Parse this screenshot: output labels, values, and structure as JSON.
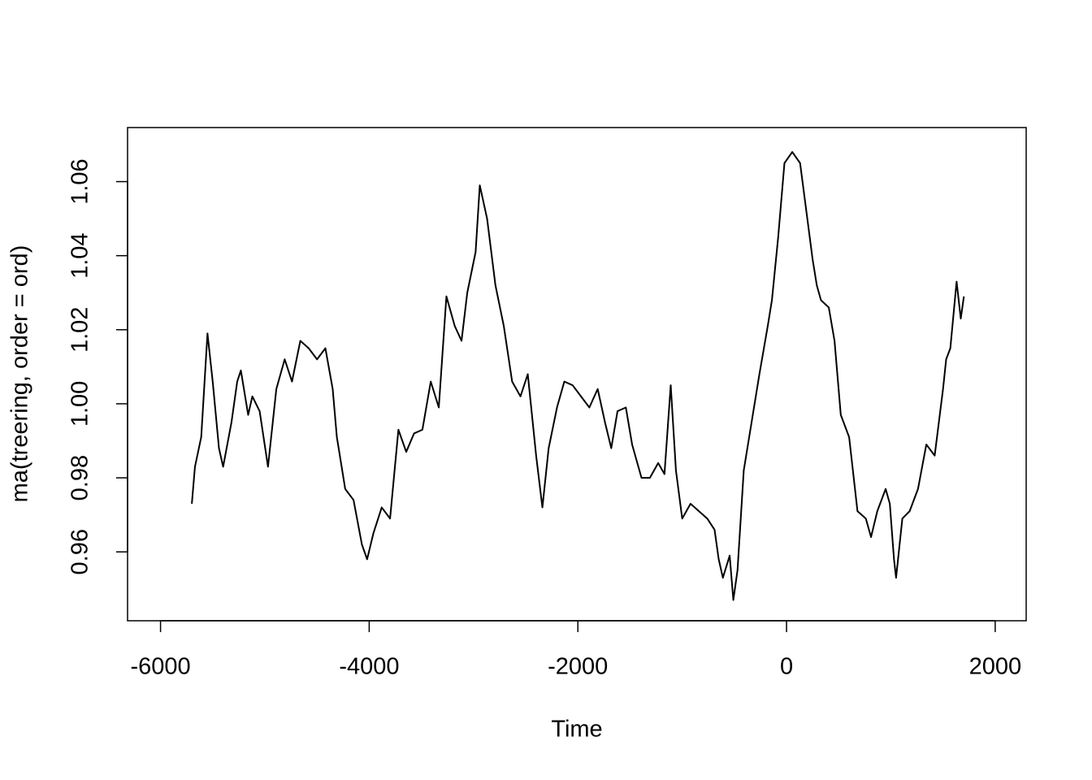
{
  "chart_data": {
    "type": "line",
    "xlabel": "Time",
    "ylabel": "ma(treering, order = ord)",
    "x": [
      -5700,
      -5670,
      -5610,
      -5550,
      -5500,
      -5440,
      -5400,
      -5320,
      -5265,
      -5230,
      -5160,
      -5120,
      -5050,
      -4970,
      -4890,
      -4810,
      -4740,
      -4660,
      -4580,
      -4500,
      -4420,
      -4350,
      -4310,
      -4230,
      -4150,
      -4070,
      -4020,
      -3960,
      -3880,
      -3800,
      -3720,
      -3645,
      -3570,
      -3490,
      -3410,
      -3333,
      -3260,
      -3180,
      -3115,
      -3060,
      -2980,
      -2940,
      -2870,
      -2790,
      -2710,
      -2630,
      -2550,
      -2480,
      -2400,
      -2340,
      -2280,
      -2200,
      -2130,
      -2050,
      -1970,
      -1890,
      -1810,
      -1740,
      -1680,
      -1620,
      -1540,
      -1480,
      -1390,
      -1310,
      -1230,
      -1170,
      -1110,
      -1060,
      -1000,
      -920,
      -840,
      -760,
      -690,
      -650,
      -610,
      -545,
      -510,
      -470,
      -410,
      -335,
      -260,
      -180,
      -140,
      -80,
      -20,
      55,
      130,
      190,
      250,
      290,
      330,
      405,
      460,
      520,
      600,
      680,
      760,
      810,
      870,
      950,
      990,
      1030,
      1050,
      1110,
      1180,
      1260,
      1340,
      1420,
      1500,
      1530,
      1570,
      1630,
      1670,
      1700
    ],
    "series": [
      {
        "color": "#000000",
        "values": [
          0.973,
          0.983,
          0.991,
          1.019,
          1.006,
          0.988,
          0.983,
          0.995,
          1.006,
          1.009,
          0.997,
          1.002,
          0.998,
          0.983,
          1.004,
          1.012,
          1.006,
          1.017,
          1.015,
          1.012,
          1.015,
          1.004,
          0.991,
          0.977,
          0.974,
          0.962,
          0.958,
          0.965,
          0.972,
          0.969,
          0.993,
          0.987,
          0.992,
          0.993,
          1.006,
          0.999,
          1.029,
          1.021,
          1.017,
          1.03,
          1.041,
          1.059,
          1.05,
          1.032,
          1.021,
          1.006,
          1.002,
          1.008,
          0.986,
          0.972,
          0.988,
          0.999,
          1.006,
          1.005,
          1.002,
          0.999,
          1.004,
          0.995,
          0.988,
          0.998,
          0.999,
          0.989,
          0.98,
          0.98,
          0.984,
          0.981,
          1.005,
          0.982,
          0.969,
          0.973,
          0.971,
          0.969,
          0.966,
          0.958,
          0.953,
          0.959,
          0.947,
          0.955,
          0.982,
          0.995,
          1.008,
          1.021,
          1.028,
          1.045,
          1.065,
          1.068,
          1.065,
          1.052,
          1.039,
          1.032,
          1.028,
          1.026,
          1.017,
          0.997,
          0.991,
          0.971,
          0.969,
          0.964,
          0.971,
          0.977,
          0.973,
          0.958,
          0.953,
          0.969,
          0.971,
          0.977,
          0.989,
          0.986,
          1.004,
          1.012,
          1.015,
          1.033,
          1.023,
          1.029
        ]
      }
    ],
    "xlim": [
      -6316,
      2297
    ],
    "ylim": [
      0.9414,
      1.0746
    ],
    "xticks": [
      -6000,
      -4000,
      -2000,
      0,
      2000
    ],
    "yticks": [
      0.96,
      0.98,
      {
        "value": 1,
        "label": "1.00"
      },
      1.02,
      1.04,
      1.06
    ]
  }
}
